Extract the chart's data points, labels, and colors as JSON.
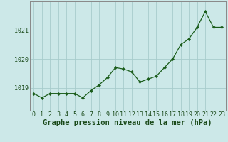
{
  "x": [
    0,
    1,
    2,
    3,
    4,
    5,
    6,
    7,
    8,
    9,
    10,
    11,
    12,
    13,
    14,
    15,
    16,
    17,
    18,
    19,
    20,
    21,
    22,
    23
  ],
  "y": [
    1018.8,
    1018.65,
    1018.8,
    1018.8,
    1018.8,
    1018.8,
    1018.65,
    1018.9,
    1019.1,
    1019.35,
    1019.7,
    1019.65,
    1019.55,
    1019.2,
    1019.3,
    1019.4,
    1019.7,
    1020.0,
    1020.5,
    1020.7,
    1021.1,
    1021.65,
    1021.1,
    1021.1
  ],
  "bg_color": "#cce8e8",
  "line_color": "#1a5c1a",
  "marker_color": "#1a5c1a",
  "grid_color": "#a8cccc",
  "xlabel": "Graphe pression niveau de la mer (hPa)",
  "xlabel_fontsize": 7.5,
  "tick_fontsize": 6,
  "ytick_labels": [
    1019,
    1020,
    1021
  ],
  "ylim": [
    1018.2,
    1022.0
  ],
  "xlim": [
    -0.5,
    23.5
  ],
  "border_color": "#888888",
  "text_color": "#1a4a1a"
}
